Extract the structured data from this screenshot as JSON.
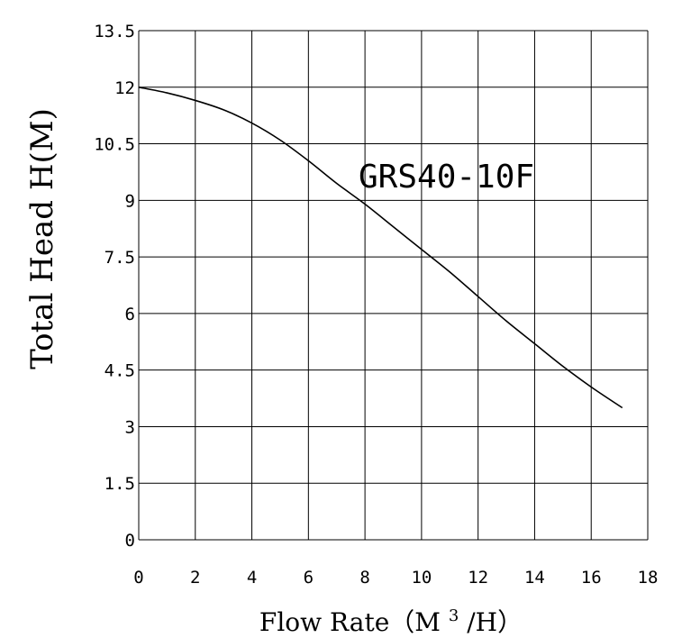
{
  "chart_data": {
    "type": "line",
    "title": "",
    "xlabel": "Flow Rate（M3/H）",
    "xlabel_parts": {
      "prefix": "Flow Rate（M",
      "superscript": "3",
      "suffix": "/H）"
    },
    "ylabel": "Total Head H(M)",
    "xlim": [
      0,
      18
    ],
    "ylim": [
      0,
      13.5
    ],
    "x_ticks": [
      "0",
      "2",
      "4",
      "6",
      "8",
      "10",
      "12",
      "14",
      "16",
      "18"
    ],
    "y_ticks": [
      "0",
      "1.5",
      "3",
      "4.5",
      "6",
      "7.5",
      "9",
      "10.5",
      "12",
      "13.5"
    ],
    "grid": true,
    "colors": {
      "line": "#000000",
      "grid": "#000000",
      "background": "#ffffff"
    },
    "series": [
      {
        "label": "GRS40-10F",
        "x": [
          0,
          1,
          2,
          3,
          4,
          5,
          6,
          7,
          8,
          9,
          10,
          11,
          12,
          13,
          14,
          15,
          16,
          17.1
        ],
        "y": [
          12.0,
          11.85,
          11.65,
          11.4,
          11.05,
          10.6,
          10.05,
          9.45,
          8.9,
          8.3,
          7.7,
          7.1,
          6.45,
          5.8,
          5.2,
          4.6,
          4.05,
          3.5
        ]
      }
    ]
  }
}
